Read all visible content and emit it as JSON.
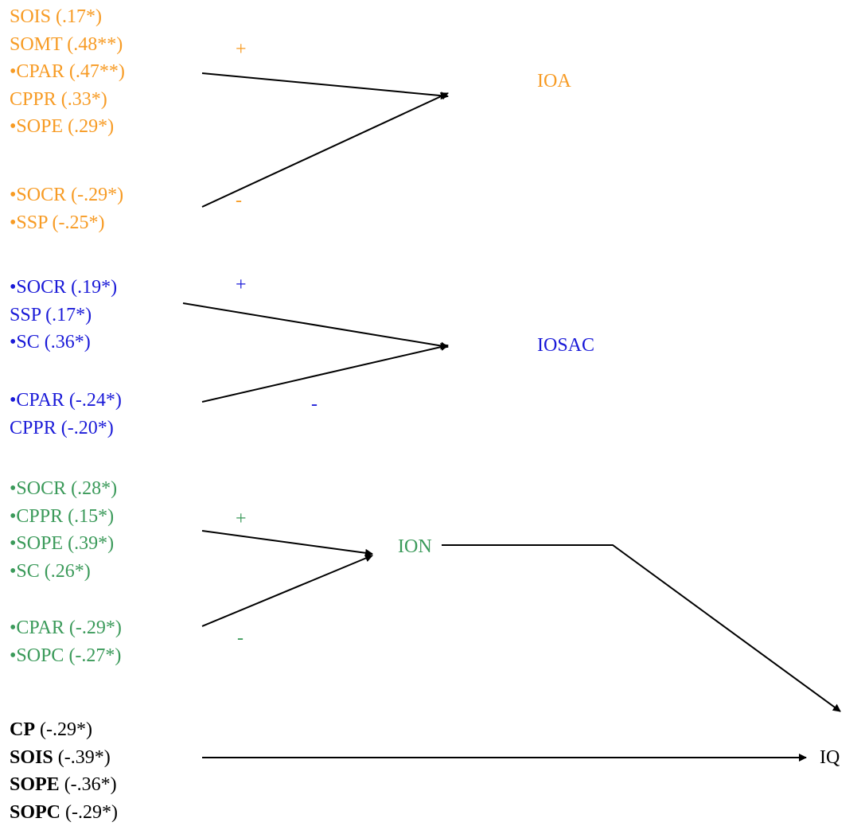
{
  "groups": [
    {
      "target": "IOA",
      "color": "#f79b24",
      "positive": [
        "SOIS (.17*)",
        "SOMT  (.48**)",
        "•CPAR (.47**)",
        "CPPR (.33*)",
        "•SOPE (.29*)"
      ],
      "negative": [
        "•SOCR (-.29*)",
        "•SSP (-.25*)"
      ],
      "plus_sign": "+",
      "minus_sign": "-"
    },
    {
      "target": "IOSAC",
      "color": "#1a1ad8",
      "positive": [
        "•SOCR (.19*)",
        "SSP (.17*)",
        "•SC (.36*)"
      ],
      "negative": [
        "•CPAR (-.24*)",
        "CPPR (-.20*)"
      ],
      "plus_sign": "+",
      "minus_sign": "-"
    },
    {
      "target": "ION",
      "color": "#3b9a5a",
      "positive": [
        "•SOCR (.28*)",
        "•CPPR (.15*)",
        "•SOPE (.39*)",
        "•SC (.26*)"
      ],
      "negative": [
        "•CPAR (-.29*)",
        "•SOPC (-.27*)"
      ],
      "plus_sign": "+",
      "minus_sign": "-"
    }
  ],
  "direct": {
    "items": [
      {
        "name": "CP",
        "value": " (-.29*)"
      },
      {
        "name": "SOIS",
        "value": " (-.39*)"
      },
      {
        "name": "SOPE",
        "value": " (-.36*)"
      },
      {
        "name": "SOPC",
        "value": " (-.29*)"
      }
    ],
    "target": "IQ"
  }
}
